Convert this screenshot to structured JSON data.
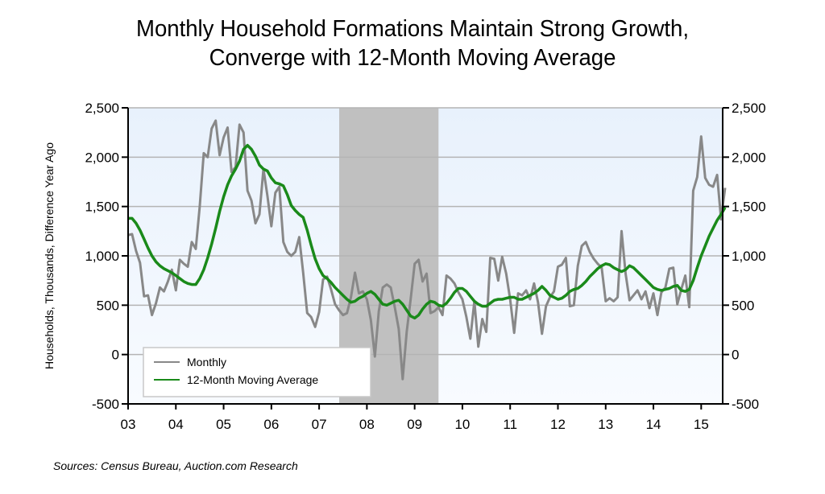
{
  "chart_data": {
    "type": "line",
    "title_lines": [
      "Monthly Household Formations Maintain Strong Growth,",
      "Converge with 12-Month Moving Average"
    ],
    "ylabel": "Households, Thousands, Difference Year Ago",
    "xlabel": "",
    "ylim": [
      -500,
      2500
    ],
    "yticks": [
      -500,
      0,
      500,
      1000,
      1500,
      2000,
      2500
    ],
    "ytick_labels": [
      "-500",
      "0",
      "500",
      "1,000",
      "1,500",
      "2,000",
      "2,500"
    ],
    "xlim": [
      2003.0,
      2015.45
    ],
    "xticks": [
      2003,
      2004,
      2005,
      2006,
      2007,
      2008,
      2009,
      2010,
      2011,
      2012,
      2013,
      2014,
      2015
    ],
    "xtick_labels": [
      "03",
      "04",
      "05",
      "06",
      "07",
      "08",
      "09",
      "10",
      "11",
      "12",
      "13",
      "14",
      "15"
    ],
    "grid": true,
    "dual_y_axis": true,
    "legend": {
      "position": "bottom-left",
      "entries": [
        "Monthly",
        "12-Month Moving Average"
      ]
    },
    "shaded_regions": [
      {
        "label": "recession",
        "start": 2007.42,
        "end": 2009.5,
        "color": "#c0c0c0"
      }
    ],
    "start": "2003-01",
    "frequency": "monthly",
    "series": [
      {
        "name": "Monthly",
        "color": "#888888",
        "values": [
          1210,
          1220,
          1050,
          930,
          590,
          600,
          400,
          520,
          680,
          640,
          740,
          860,
          650,
          960,
          920,
          890,
          1140,
          1070,
          1500,
          2040,
          2000,
          2290,
          2370,
          2020,
          2200,
          2300,
          1850,
          1900,
          2330,
          2250,
          1660,
          1560,
          1330,
          1420,
          1880,
          1610,
          1300,
          1640,
          1700,
          1140,
          1040,
          1000,
          1040,
          1190,
          830,
          420,
          380,
          280,
          430,
          760,
          790,
          660,
          510,
          450,
          400,
          420,
          580,
          830,
          620,
          640,
          560,
          350,
          -20,
          440,
          680,
          710,
          680,
          480,
          260,
          -250,
          230,
          560,
          920,
          960,
          740,
          820,
          420,
          440,
          480,
          400,
          800,
          770,
          720,
          630,
          560,
          380,
          160,
          540,
          80,
          360,
          230,
          980,
          970,
          750,
          990,
          820,
          560,
          220,
          620,
          600,
          650,
          560,
          720,
          530,
          210,
          490,
          580,
          640,
          890,
          910,
          980,
          490,
          500,
          900,
          1100,
          1140,
          1040,
          970,
          920,
          880,
          540,
          570,
          540,
          580,
          1250,
          820,
          550,
          600,
          650,
          560,
          640,
          470,
          620,
          400,
          630,
          680,
          870,
          880,
          510,
          660,
          800,
          480,
          1660,
          1800,
          2210,
          1790,
          1720,
          1700,
          1820,
          1370,
          1690
        ]
      },
      {
        "name": "12-Month Moving Average",
        "color": "#1a8a1a",
        "values": [
          1380,
          1380,
          1330,
          1260,
          1170,
          1080,
          1000,
          940,
          900,
          870,
          850,
          830,
          800,
          770,
          740,
          720,
          710,
          710,
          770,
          860,
          980,
          1120,
          1280,
          1450,
          1600,
          1720,
          1810,
          1880,
          1960,
          2080,
          2120,
          2080,
          2010,
          1920,
          1880,
          1860,
          1790,
          1740,
          1730,
          1710,
          1620,
          1510,
          1460,
          1420,
          1390,
          1260,
          1110,
          970,
          870,
          800,
          770,
          730,
          680,
          640,
          600,
          560,
          530,
          540,
          570,
          590,
          620,
          640,
          610,
          560,
          510,
          500,
          520,
          540,
          550,
          510,
          450,
          390,
          370,
          400,
          460,
          510,
          540,
          530,
          500,
          490,
          520,
          570,
          630,
          670,
          670,
          640,
          590,
          540,
          510,
          490,
          490,
          520,
          550,
          560,
          560,
          570,
          580,
          580,
          560,
          560,
          580,
          600,
          620,
          650,
          690,
          650,
          600,
          580,
          560,
          570,
          600,
          640,
          660,
          670,
          700,
          740,
          790,
          830,
          870,
          900,
          920,
          910,
          880,
          860,
          840,
          860,
          900,
          880,
          840,
          800,
          760,
          720,
          680,
          660,
          650,
          660,
          670,
          690,
          700,
          650,
          640,
          660,
          750,
          880,
          1000,
          1100,
          1200,
          1280,
          1360,
          1420,
          1490
        ]
      }
    ],
    "source": "Sources: Census Bureau, Auction.com Research"
  }
}
